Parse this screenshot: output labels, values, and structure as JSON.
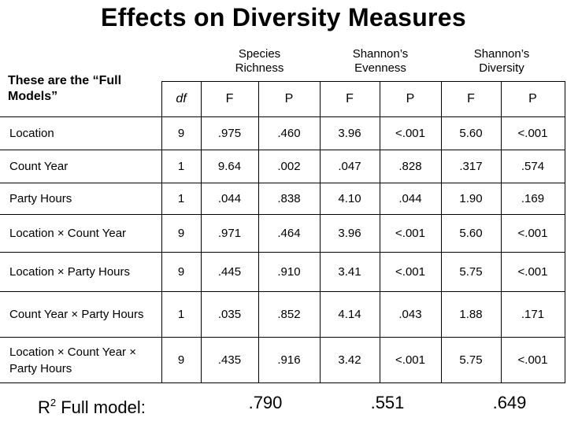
{
  "title": "Effects on Diversity Measures",
  "models_note": "These are the “Full Models”",
  "groups": [
    {
      "label": "Species Richness"
    },
    {
      "label": "Shannon’s Evenness"
    },
    {
      "label": "Shannon’s Diversity"
    }
  ],
  "columns": {
    "df": "df",
    "f": "F",
    "p": "P"
  },
  "rows": [
    {
      "label": "Location",
      "df": "9",
      "sr_f": ".975",
      "sr_p": ".460",
      "se_f": "3.96",
      "se_p": "<.001",
      "sd_f": "5.60",
      "sd_p": "<.001"
    },
    {
      "label": "Count Year",
      "df": "1",
      "sr_f": "9.64",
      "sr_p": ".002",
      "se_f": ".047",
      "se_p": ".828",
      "sd_f": ".317",
      "sd_p": ".574"
    },
    {
      "label": "Party Hours",
      "df": "1",
      "sr_f": ".044",
      "sr_p": ".838",
      "se_f": "4.10",
      "se_p": ".044",
      "sd_f": "1.90",
      "sd_p": ".169"
    },
    {
      "label": "Location × Count Year",
      "df": "9",
      "sr_f": ".971",
      "sr_p": ".464",
      "se_f": "3.96",
      "se_p": "<.001",
      "sd_f": "5.60",
      "sd_p": "<.001"
    },
    {
      "label": "Location × Party Hours",
      "df": "9",
      "sr_f": ".445",
      "sr_p": ".910",
      "se_f": "3.41",
      "se_p": "<.001",
      "sd_f": "5.75",
      "sd_p": "<.001"
    },
    {
      "label": "Count Year × Party Hours",
      "df": "1",
      "sr_f": ".035",
      "sr_p": ".852",
      "se_f": "4.14",
      "se_p": ".043",
      "sd_f": "1.88",
      "sd_p": ".171"
    },
    {
      "label": "Location × Count Year × Party Hours",
      "df": "9",
      "sr_f": ".435",
      "sr_p": ".916",
      "se_f": "3.42",
      "se_p": "<.001",
      "sd_f": "5.75",
      "sd_p": "<.001"
    }
  ],
  "footer": {
    "r_symbol": "R",
    "r_sup": "2",
    "label": " Full model:",
    "richness": ".790",
    "evenness": ".551",
    "diversity": ".649"
  },
  "colors": {
    "significant": "#1d3a8a"
  }
}
